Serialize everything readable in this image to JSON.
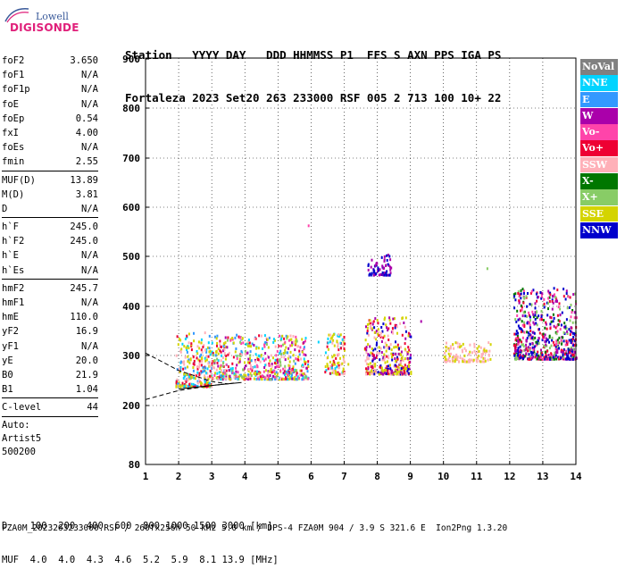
{
  "logo": {
    "line1": "Lowell",
    "line2": "DIGISONDE"
  },
  "header": {
    "line1": "Station   YYYY DAY   DDD HHMMSS P1  FFS S AXN PPS IGA PS",
    "line2": "Fortaleza 2023 Set20 263 233000 RSF 005 2 713 100 10+ 22"
  },
  "params_group1": [
    {
      "label": "foF2",
      "value": "3.650"
    },
    {
      "label": "foF1",
      "value": "N/A"
    },
    {
      "label": "foF1p",
      "value": "N/A"
    },
    {
      "label": "foE",
      "value": "N/A"
    },
    {
      "label": "foEp",
      "value": "0.54"
    },
    {
      "label": "fxI",
      "value": "4.00"
    },
    {
      "label": "foEs",
      "value": "N/A"
    },
    {
      "label": "fmin",
      "value": "2.55"
    }
  ],
  "params_group2": [
    {
      "label": "MUF(D)",
      "value": "13.89"
    },
    {
      "label": "M(D)",
      "value": "3.81"
    },
    {
      "label": "D",
      "value": "N/A"
    }
  ],
  "params_group3": [
    {
      "label": "h`F",
      "value": "245.0"
    },
    {
      "label": "h`F2",
      "value": "245.0"
    },
    {
      "label": "h`E",
      "value": "N/A"
    },
    {
      "label": "h`Es",
      "value": "N/A"
    }
  ],
  "params_group4": [
    {
      "label": "hmF2",
      "value": "245.7"
    },
    {
      "label": "hmF1",
      "value": "N/A"
    },
    {
      "label": "hmE",
      "value": "110.0"
    },
    {
      "label": "yF2",
      "value": "16.9"
    },
    {
      "label": "yF1",
      "value": "N/A"
    },
    {
      "label": "yE",
      "value": "20.0"
    },
    {
      "label": "B0",
      "value": "21.9"
    },
    {
      "label": "B1",
      "value": "1.04"
    }
  ],
  "params_group5": [
    {
      "label": "C-level",
      "value": "44"
    }
  ],
  "autoscale": {
    "line1": "Auto:",
    "line2": "Artist5",
    "line3": "500200"
  },
  "legend": [
    {
      "label": "NoVal",
      "bg": "#808080",
      "fg": "#ffffff"
    },
    {
      "label": "NNE",
      "bg": "#00d4ff",
      "fg": "#ffffff"
    },
    {
      "label": "E",
      "bg": "#3399ff",
      "fg": "#ffffff"
    },
    {
      "label": "W",
      "bg": "#aa00aa",
      "fg": "#ffffff"
    },
    {
      "label": "Vo-",
      "bg": "#ff44aa",
      "fg": "#ffffff"
    },
    {
      "label": "Vo+",
      "bg": "#ee0033",
      "fg": "#ffffff"
    },
    {
      "label": "SSW",
      "bg": "#ffb0b8",
      "fg": "#ffffff"
    },
    {
      "label": "X-",
      "bg": "#007700",
      "fg": "#ffffff"
    },
    {
      "label": "X+",
      "bg": "#88cc66",
      "fg": "#ffffff"
    },
    {
      "label": "SSE",
      "bg": "#d4d400",
      "fg": "#ffffff"
    },
    {
      "label": "NNW",
      "bg": "#0000cc",
      "fg": "#ffffff"
    }
  ],
  "chart_data": {
    "type": "scatter",
    "x_ticks": [
      "1",
      "2",
      "3",
      "4",
      "5",
      "6",
      "7",
      "8",
      "9",
      "10",
      "11",
      "12",
      "13",
      "14"
    ],
    "y_ticks": [
      "80",
      "200",
      "300",
      "400",
      "500",
      "600",
      "700",
      "800",
      "900"
    ],
    "xlim": [
      1,
      14
    ],
    "y_scale": "logarithmic (virtual height, km)",
    "ylim": [
      80,
      900
    ],
    "grid": "dotted",
    "clusters": [
      {
        "x_range": [
          1.9,
          3.0
        ],
        "y_range": [
          240,
          350
        ],
        "colors": [
          "SSE",
          "SSW",
          "Vo+",
          "NNE",
          "E"
        ]
      },
      {
        "x_range": [
          3.0,
          5.9
        ],
        "y_range": [
          255,
          345
        ],
        "colors": [
          "SSE",
          "SSW",
          "Vo+",
          "Vo-",
          "NNE",
          "E",
          "X+",
          "W"
        ]
      },
      {
        "x_range": [
          6.4,
          7.0
        ],
        "y_range": [
          265,
          350
        ],
        "colors": [
          "SSE",
          "SSW",
          "Vo+",
          "NNE"
        ]
      },
      {
        "x_range": [
          7.6,
          9.0
        ],
        "y_range": [
          265,
          380
        ],
        "colors": [
          "SSE",
          "SSW",
          "Vo+",
          "NNW",
          "W"
        ]
      },
      {
        "x_range": [
          7.7,
          8.4
        ],
        "y_range": [
          465,
          510
        ],
        "colors": [
          "NNW",
          "W"
        ]
      },
      {
        "x_range": [
          10.0,
          11.4
        ],
        "y_range": [
          290,
          330
        ],
        "colors": [
          "SSW",
          "SSE"
        ]
      },
      {
        "x_range": [
          12.1,
          14.0
        ],
        "y_range": [
          295,
          440
        ],
        "colors": [
          "NNW",
          "Vo+",
          "X-",
          "X+",
          "W",
          "Vo-"
        ]
      }
    ],
    "curves": [
      {
        "style": "dashed",
        "points": [
          [
            1,
            305
          ],
          [
            2,
            270
          ],
          [
            3,
            248
          ],
          [
            3.5,
            243
          ]
        ]
      },
      {
        "style": "dashed",
        "points": [
          [
            1,
            212
          ],
          [
            2,
            230
          ],
          [
            3,
            240
          ],
          [
            3.7,
            245
          ]
        ]
      },
      {
        "style": "solid",
        "points": [
          [
            2,
            233
          ],
          [
            3,
            240
          ],
          [
            3.9,
            246
          ]
        ]
      }
    ]
  },
  "footer": {
    "line1": "D    100  200  400  600  800 1000 1500 3000 [km]",
    "line2": "MUF  4.0  4.0  4.3  4.6  5.2  5.9  8.1 13.9 [MHz]",
    "line3": "FZA0M_2023263233000.RSF / 260fx256h 50 kHz 5.0 km / DPS-4 FZA0M 904 / 3.9 S 321.6 E  Ion2Png 1.3.20"
  }
}
